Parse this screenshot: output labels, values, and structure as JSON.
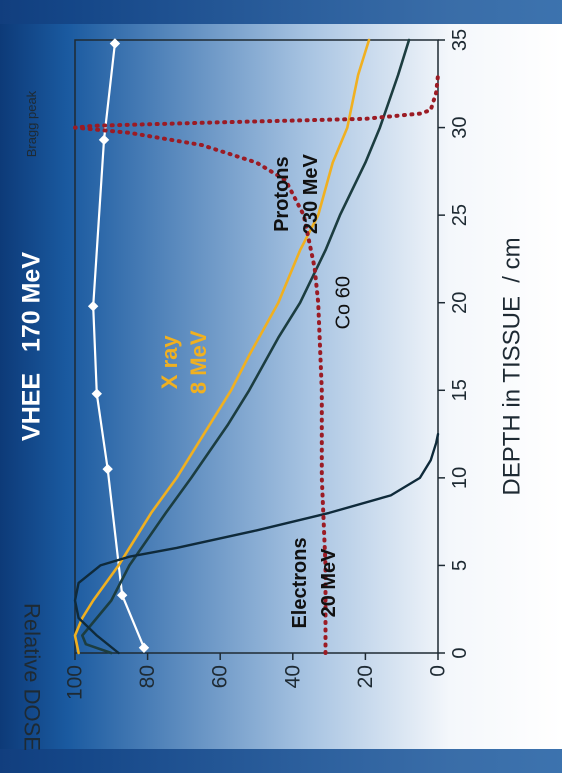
{
  "chart_data": {
    "type": "line",
    "orientation": "rotated-90-clockwise",
    "xlabel": "DEPTH in TISSUE  / cm",
    "ylabel": "Relative DOSE",
    "xlim": [
      0,
      35
    ],
    "ylim": [
      0,
      100
    ],
    "x_ticks": [
      "0",
      "5",
      "10",
      "15",
      "20",
      "25",
      "30",
      "35"
    ],
    "y_ticks": [
      "0",
      "20",
      "40",
      "60",
      "80",
      "100"
    ],
    "grid": false,
    "background": "white-to-blue gradient",
    "annotations": [
      {
        "text": "Bragg peak",
        "x": 30.2,
        "y": 112
      },
      {
        "text": "VHEE   170 MeV",
        "x": 17.5,
        "y": 112
      },
      {
        "text": "Protons",
        "x": 26.2,
        "y": 43
      },
      {
        "text": "230 MeV",
        "x": 26.2,
        "y": 35
      },
      {
        "text": "X ray",
        "x": 16.6,
        "y": 74
      },
      {
        "text": "8 MeV",
        "x": 16.6,
        "y": 66
      },
      {
        "text": "Co 60",
        "x": 20.0,
        "y": 26
      },
      {
        "text": "Electrons",
        "x": 4.0,
        "y": 38
      },
      {
        "text": "20 MeV",
        "x": 4.0,
        "y": 30
      }
    ],
    "series": [
      {
        "key": "vhee",
        "color": "#ffffff",
        "style": "solid-with-diamond-markers",
        "x": [
          0.3,
          3.3,
          10.5,
          14.8,
          19.8,
          29.3,
          34.8
        ],
        "y": [
          81,
          87,
          91,
          94,
          95,
          92,
          89
        ]
      },
      {
        "key": "xray",
        "color": "#f0b020",
        "style": "solid",
        "x": [
          0,
          1,
          2,
          3,
          5,
          8,
          10,
          13,
          15,
          17,
          20,
          23,
          25,
          28,
          30,
          33,
          35
        ],
        "y": [
          99,
          100,
          98,
          95,
          88,
          79,
          72,
          63,
          57,
          52,
          44,
          38,
          33,
          29,
          25,
          22,
          19
        ]
      },
      {
        "key": "co60",
        "color": "#1c3d40",
        "style": "solid",
        "x": [
          0,
          0.5,
          1,
          2,
          3,
          5,
          8,
          10,
          13,
          15,
          18,
          20,
          23,
          25,
          28,
          30,
          33,
          35
        ],
        "y": [
          90,
          97,
          98,
          94,
          90,
          85,
          75,
          68,
          58,
          52,
          44,
          38,
          31,
          27,
          20,
          16,
          11,
          8
        ]
      },
      {
        "key": "electrons",
        "color": "#0f2a3a",
        "style": "solid",
        "x": [
          0,
          1,
          2,
          3,
          4,
          5,
          5.5,
          6,
          7,
          8,
          9,
          10,
          11,
          12,
          12.5
        ],
        "y": [
          88,
          94,
          99,
          100,
          99,
          93,
          85,
          72,
          50,
          30,
          13,
          5,
          2,
          0.5,
          0
        ]
      },
      {
        "key": "protons",
        "color": "#9b1b24",
        "style": "dotted",
        "x": [
          0,
          5,
          10,
          15,
          20,
          22,
          25,
          27,
          28,
          29,
          29.7,
          30.0,
          30.1,
          30.3,
          30.5,
          30.8,
          31,
          32,
          33
        ],
        "y": [
          31,
          31,
          32,
          32,
          33,
          34,
          37,
          42,
          50,
          65,
          85,
          100,
          95,
          60,
          20,
          5,
          2,
          0.5,
          0
        ]
      }
    ]
  }
}
